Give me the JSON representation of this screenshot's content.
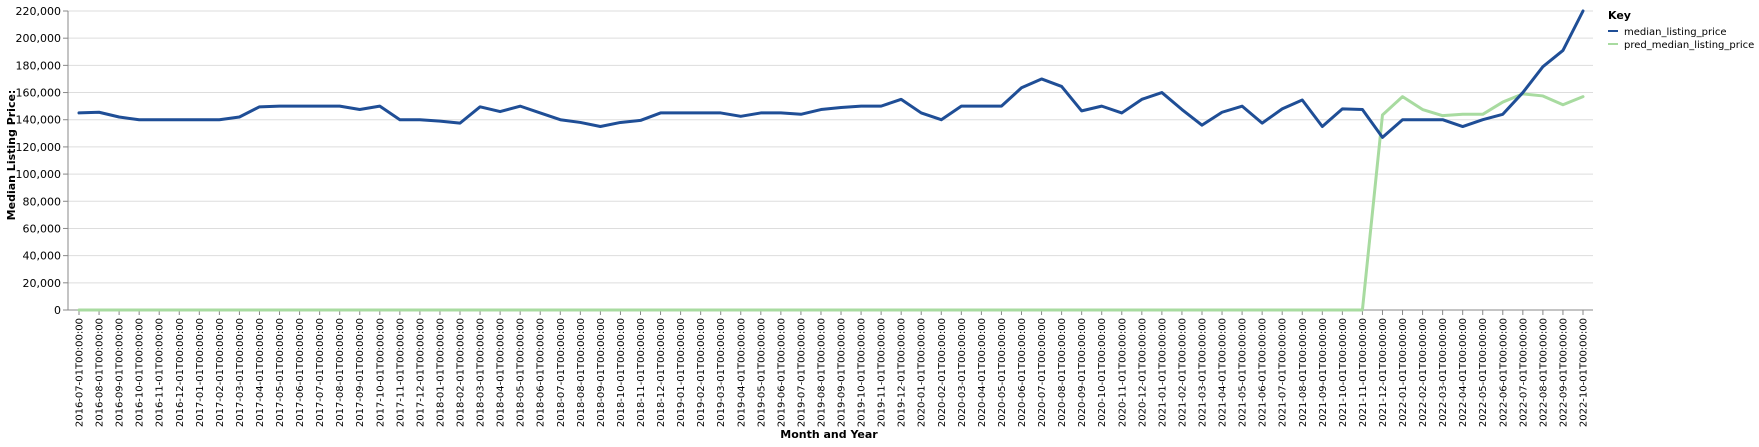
{
  "chart_data": {
    "type": "line",
    "xlabel": "Month and Year",
    "ylabel": "Median Listing Price:",
    "ylim": [
      0,
      220000
    ],
    "yticks": [
      0,
      20000,
      40000,
      60000,
      80000,
      100000,
      120000,
      140000,
      160000,
      180000,
      200000,
      220000
    ],
    "ytick_labels": [
      "0",
      "20,000",
      "40,000",
      "60,000",
      "80,000",
      "100,000",
      "120,000",
      "140,000",
      "160,000",
      "180,000",
      "200,000",
      "220,000"
    ],
    "grid": true,
    "legend": {
      "title": "Key",
      "position": "top-right",
      "entries": [
        "median_listing_price",
        "pred_median_listing_price"
      ]
    },
    "x": [
      "2016-07-01T00:00:00",
      "2016-08-01T00:00:00",
      "2016-09-01T00:00:00",
      "2016-10-01T00:00:00",
      "2016-11-01T00:00:00",
      "2016-12-01T00:00:00",
      "2017-01-01T00:00:00",
      "2017-02-01T00:00:00",
      "2017-03-01T00:00:00",
      "2017-04-01T00:00:00",
      "2017-05-01T00:00:00",
      "2017-06-01T00:00:00",
      "2017-07-01T00:00:00",
      "2017-08-01T00:00:00",
      "2017-09-01T00:00:00",
      "2017-10-01T00:00:00",
      "2017-11-01T00:00:00",
      "2017-12-01T00:00:00",
      "2018-01-01T00:00:00",
      "2018-02-01T00:00:00",
      "2018-03-01T00:00:00",
      "2018-04-01T00:00:00",
      "2018-05-01T00:00:00",
      "2018-06-01T00:00:00",
      "2018-07-01T00:00:00",
      "2018-08-01T00:00:00",
      "2018-09-01T00:00:00",
      "2018-10-01T00:00:00",
      "2018-11-01T00:00:00",
      "2018-12-01T00:00:00",
      "2019-01-01T00:00:00",
      "2019-02-01T00:00:00",
      "2019-03-01T00:00:00",
      "2019-04-01T00:00:00",
      "2019-05-01T00:00:00",
      "2019-06-01T00:00:00",
      "2019-07-01T00:00:00",
      "2019-08-01T00:00:00",
      "2019-09-01T00:00:00",
      "2019-10-01T00:00:00",
      "2019-11-01T00:00:00",
      "2019-12-01T00:00:00",
      "2020-01-01T00:00:00",
      "2020-02-01T00:00:00",
      "2020-03-01T00:00:00",
      "2020-04-01T00:00:00",
      "2020-05-01T00:00:00",
      "2020-06-01T00:00:00",
      "2020-07-01T00:00:00",
      "2020-08-01T00:00:00",
      "2020-09-01T00:00:00",
      "2020-10-01T00:00:00",
      "2020-11-01T00:00:00",
      "2020-12-01T00:00:00",
      "2021-01-01T00:00:00",
      "2021-02-01T00:00:00",
      "2021-03-01T00:00:00",
      "2021-04-01T00:00:00",
      "2021-05-01T00:00:00",
      "2021-06-01T00:00:00",
      "2021-07-01T00:00:00",
      "2021-08-01T00:00:00",
      "2021-09-01T00:00:00",
      "2021-10-01T00:00:00",
      "2021-11-01T00:00:00",
      "2021-12-01T00:00:00",
      "2022-01-01T00:00:00",
      "2022-02-01T00:00:00",
      "2022-03-01T00:00:00",
      "2022-04-01T00:00:00",
      "2022-05-01T00:00:00",
      "2022-06-01T00:00:00",
      "2022-07-01T00:00:00",
      "2022-08-01T00:00:00",
      "2022-09-01T00:00:00",
      "2022-10-01T00:00:00"
    ],
    "series": [
      {
        "name": "median_listing_price",
        "color": "#1f4e96",
        "values": [
          145000,
          145500,
          142000,
          140000,
          140000,
          140000,
          140000,
          140000,
          142000,
          149500,
          150000,
          150000,
          150000,
          150000,
          147500,
          150000,
          140000,
          140000,
          139000,
          137500,
          149500,
          146000,
          150000,
          145000,
          140000,
          138000,
          135000,
          138000,
          139500,
          145000,
          145000,
          145000,
          145000,
          142500,
          145000,
          145000,
          144000,
          147500,
          149000,
          150000,
          150000,
          155000,
          145000,
          140000,
          150000,
          150000,
          150000,
          163500,
          170000,
          164500,
          146500,
          150000,
          145000,
          155000,
          160000,
          147500,
          136000,
          145500,
          150000,
          137500,
          148000,
          154500,
          135000,
          148000,
          147500,
          127000,
          140000,
          140000,
          140000,
          135000,
          140000,
          144000,
          160000,
          179000,
          191000,
          220000
        ]
      },
      {
        "name": "pred_median_listing_price",
        "color": "#a8dba0",
        "values": [
          0,
          0,
          0,
          0,
          0,
          0,
          0,
          0,
          0,
          0,
          0,
          0,
          0,
          0,
          0,
          0,
          0,
          0,
          0,
          0,
          0,
          0,
          0,
          0,
          0,
          0,
          0,
          0,
          0,
          0,
          0,
          0,
          0,
          0,
          0,
          0,
          0,
          0,
          0,
          0,
          0,
          0,
          0,
          0,
          0,
          0,
          0,
          0,
          0,
          0,
          0,
          0,
          0,
          0,
          0,
          0,
          0,
          0,
          0,
          0,
          0,
          0,
          0,
          0,
          0,
          143500,
          157000,
          147500,
          143000,
          144000,
          144000,
          153000,
          159000,
          157500,
          151000,
          157000
        ]
      }
    ]
  }
}
